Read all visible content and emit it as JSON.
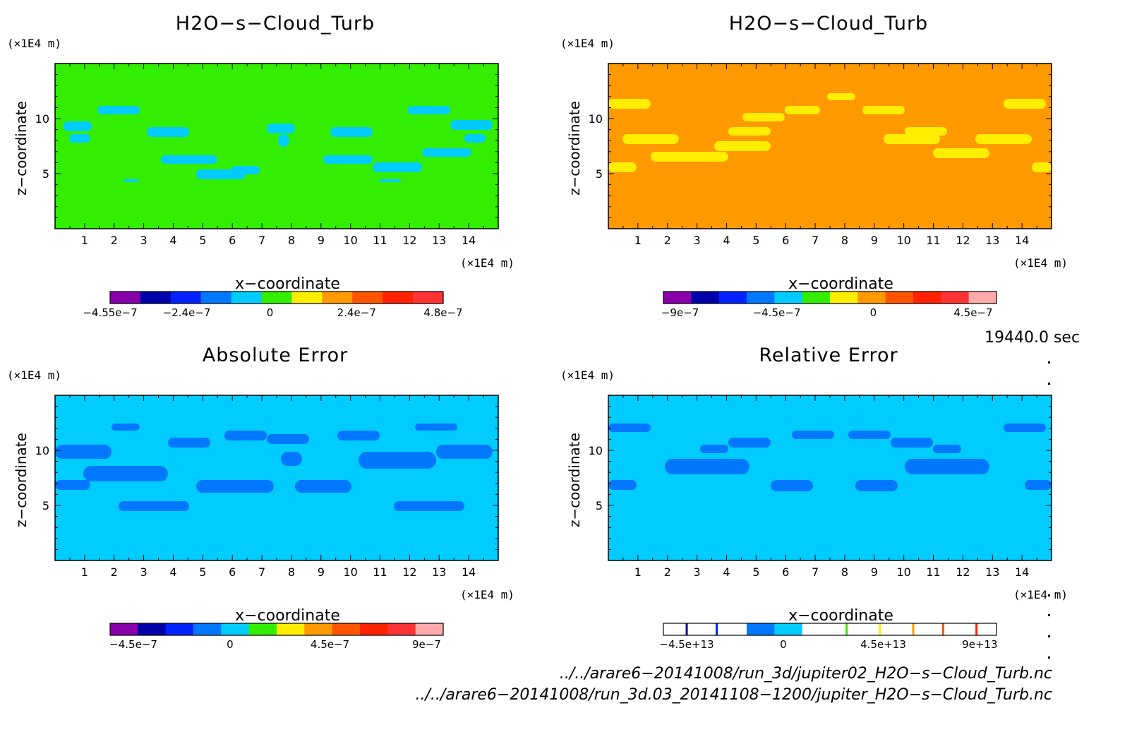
{
  "panels": {
    "tl": {
      "title": "H2O−s−Cloud_Turb",
      "yunit": "(×1E4 m)",
      "xunit": "(×1E4 m)",
      "ylabel": "z−coordinate",
      "xlabel": "x−coordinate"
    },
    "tr": {
      "title": "H2O−s−Cloud_Turb",
      "yunit": "(×1E4 m)",
      "xunit": "(×1E4 m)",
      "ylabel": "z−coordinate",
      "xlabel": "x−coordinate"
    },
    "bl": {
      "title": "Absolute Error",
      "yunit": "(×1E4 m)",
      "xunit": "(×1E4 m)",
      "ylabel": "z−coordinate",
      "xlabel": "x−coordinate"
    },
    "br": {
      "title": "Relative Error",
      "yunit": "(×1E4 m)",
      "xunit": "(×1E4 m)",
      "ylabel": "z−coordinate",
      "xlabel": "x−coordinate"
    }
  },
  "time_label": "19440.0 sec",
  "files": [
    "../../arare6−20141008/run_3d/jupiter02_H2O−s−Cloud_Turb.nc",
    "../../arare6−20141008/run_3d.03_20141108−1200/jupiter_H2O−s−Cloud_Turb.nc"
  ],
  "colors": {
    "purple": "#8800aa",
    "navy": "#0000aa",
    "blue": "#0022ff",
    "mid_blue": "#0077ff",
    "cyan": "#00ccff",
    "green": "#33ee00",
    "yellow": "#ffee00",
    "orange": "#ff9900",
    "dark_orange": "#ff5500",
    "red": "#ff2200",
    "red2": "#ff3333",
    "pink": "#ffaaaa"
  },
  "chart_data": [
    {
      "type": "heatmap",
      "title": "H2O−s−Cloud_Turb",
      "xlabel": "x−coordinate",
      "ylabel": "z−coordinate",
      "xunit": "(×1E4 m)",
      "yunit": "(×1E4 m)",
      "xlim": [
        0,
        15
      ],
      "ylim": [
        0,
        15
      ],
      "xticks": [
        1,
        2,
        3,
        4,
        5,
        6,
        7,
        8,
        9,
        10,
        11,
        12,
        13,
        14
      ],
      "yticks": [
        5,
        10
      ],
      "background": "#33ee00",
      "colorbar": {
        "colors": [
          "#8800aa",
          "#0000aa",
          "#0022ff",
          "#0077ff",
          "#00ccff",
          "#33ee00",
          "#ffee00",
          "#ff9900",
          "#ff5500",
          "#ff2200",
          "#ff3333"
        ],
        "labels": [
          {
            "text": "−4.55e−7",
            "pos": 0
          },
          {
            "text": "−2.4e−7",
            "pos": 0.23
          },
          {
            "text": "0",
            "pos": 0.48
          },
          {
            "text": "2.4e−7",
            "pos": 0.74
          },
          {
            "text": "4.8e−7",
            "pos": 1.0
          }
        ]
      }
    },
    {
      "type": "heatmap",
      "title": "H2O−s−Cloud_Turb",
      "xlabel": "x−coordinate",
      "ylabel": "z−coordinate",
      "xunit": "(×1E4 m)",
      "yunit": "(×1E4 m)",
      "xlim": [
        0,
        15
      ],
      "ylim": [
        0,
        15
      ],
      "xticks": [
        1,
        2,
        3,
        4,
        5,
        6,
        7,
        8,
        9,
        10,
        11,
        12,
        13,
        14
      ],
      "yticks": [
        5,
        10
      ],
      "background": "#ff9900",
      "colorbar": {
        "colors": [
          "#8800aa",
          "#0000aa",
          "#0022ff",
          "#0077ff",
          "#00ccff",
          "#33ee00",
          "#ffee00",
          "#ff9900",
          "#ff5500",
          "#ff2200",
          "#ff3333",
          "#ffaaaa"
        ],
        "labels": [
          {
            "text": "−9e−7",
            "pos": 0.05
          },
          {
            "text": "−4.5e−7",
            "pos": 0.34
          },
          {
            "text": "0",
            "pos": 0.63
          },
          {
            "text": "4.5e−7",
            "pos": 0.93
          }
        ]
      }
    },
    {
      "type": "heatmap",
      "title": "Absolute Error",
      "xlabel": "x−coordinate",
      "ylabel": "z−coordinate",
      "xunit": "(×1E4 m)",
      "yunit": "(×1E4 m)",
      "xlim": [
        0,
        15
      ],
      "ylim": [
        0,
        15
      ],
      "xticks": [
        1,
        2,
        3,
        4,
        5,
        6,
        7,
        8,
        9,
        10,
        11,
        12,
        13,
        14
      ],
      "yticks": [
        5,
        10
      ],
      "background": "#00ccff",
      "colorbar": {
        "colors": [
          "#8800aa",
          "#0000aa",
          "#0022ff",
          "#0077ff",
          "#00ccff",
          "#33ee00",
          "#ffee00",
          "#ff9900",
          "#ff5500",
          "#ff2200",
          "#ff3333",
          "#ffaaaa"
        ],
        "labels": [
          {
            "text": "−4.5e−7",
            "pos": 0.07
          },
          {
            "text": "0",
            "pos": 0.36
          },
          {
            "text": "4.5e−7",
            "pos": 0.66
          },
          {
            "text": "9e−7",
            "pos": 0.95
          }
        ]
      }
    },
    {
      "type": "heatmap",
      "title": "Relative Error",
      "xlabel": "x−coordinate",
      "ylabel": "z−coordinate",
      "xunit": "(×1E4 m)",
      "yunit": "(×1E4 m)",
      "xlim": [
        0,
        15
      ],
      "ylim": [
        0,
        15
      ],
      "xticks": [
        1,
        2,
        3,
        4,
        5,
        6,
        7,
        8,
        9,
        10,
        11,
        12,
        13,
        14
      ],
      "yticks": [
        5,
        10
      ],
      "background": "#00ccff",
      "colorbar": {
        "colors": [
          "#ffffff",
          "#ffffff",
          "#ffffff",
          "#0077ff",
          "#00ccff",
          "#ffffff",
          "#ffffff",
          "#ffffff",
          "#ffffff",
          "#ffffff",
          "#ffffff",
          "#ffffff"
        ],
        "lines": [
          "#0000aa",
          "#0022ff",
          "#33ee00",
          "#ffee00",
          "#ff9900",
          "#ff5500",
          "#ff2200"
        ],
        "labels": [
          {
            "text": "−4.5e+13",
            "pos": 0.07
          },
          {
            "text": "0",
            "pos": 0.36
          },
          {
            "text": "4.5e+13",
            "pos": 0.66
          },
          {
            "text": "9e+13",
            "pos": 0.95
          }
        ]
      }
    }
  ]
}
